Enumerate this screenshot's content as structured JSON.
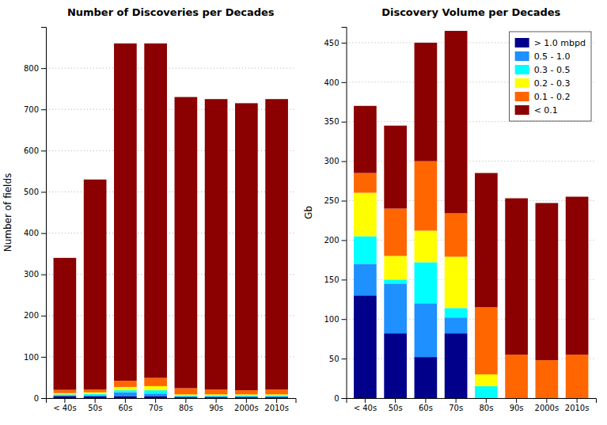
{
  "chart_data": [
    {
      "type": "bar",
      "stacked": true,
      "title": "Number of Discoveries per Decades",
      "y_label": "Number of fields",
      "categories": [
        "< 40s",
        "50s",
        "60s",
        "70s",
        "80s",
        "90s",
        "2000s",
        "2010s"
      ],
      "series": [
        {
          "color": "#00008B",
          "values": [
            5,
            4,
            5,
            5,
            2,
            2,
            2,
            2
          ]
        },
        {
          "color": "#1E90FF",
          "values": [
            2,
            3,
            9,
            6,
            2,
            2,
            2,
            2
          ]
        },
        {
          "color": "#00FFFF",
          "values": [
            2,
            3,
            5,
            8,
            2,
            2,
            2,
            2
          ]
        },
        {
          "color": "#FFFF00",
          "values": [
            3,
            4,
            8,
            10,
            3,
            3,
            3,
            3
          ]
        },
        {
          "color": "#FF6600",
          "values": [
            8,
            7,
            15,
            20,
            15,
            12,
            10,
            12
          ]
        },
        {
          "color": "#8B0000",
          "values": [
            320,
            509,
            818,
            811,
            706,
            704,
            696,
            704
          ]
        }
      ],
      "ylim": [
        0,
        900
      ],
      "yticks": [
        0,
        100,
        200,
        300,
        400,
        500,
        600,
        700,
        800
      ],
      "grid": true
    },
    {
      "type": "bar",
      "stacked": true,
      "title": "Discovery Volume per Decades",
      "y_label": "Gb",
      "categories": [
        "< 40s",
        "50s",
        "60s",
        "70s",
        "80s",
        "90s",
        "2000s",
        "2010s"
      ],
      "series": [
        {
          "name": "> 1.0 mbpd",
          "color": "#00008B",
          "values": [
            130,
            82,
            52,
            82,
            0,
            0,
            0,
            0
          ]
        },
        {
          "name": "0.5 - 1.0",
          "color": "#1E90FF",
          "values": [
            40,
            63,
            68,
            20,
            0,
            0,
            0,
            0
          ]
        },
        {
          "name": "0.3 - 0.5",
          "color": "#00FFFF",
          "values": [
            35,
            5,
            52,
            12,
            15,
            0,
            0,
            0
          ]
        },
        {
          "name": "0.2 - 0.3",
          "color": "#FFFF00",
          "values": [
            55,
            30,
            40,
            65,
            15,
            0,
            0,
            0
          ]
        },
        {
          "name": "0.1 - 0.2",
          "color": "#FF6600",
          "values": [
            25,
            60,
            88,
            55,
            85,
            55,
            48,
            55
          ]
        },
        {
          "name": "< 0.1",
          "color": "#8B0000",
          "values": [
            85,
            105,
            150,
            231,
            170,
            198,
            199,
            200
          ]
        }
      ],
      "ylim": [
        0,
        470
      ],
      "yticks": [
        0,
        50,
        100,
        150,
        200,
        250,
        300,
        350,
        400,
        450
      ],
      "grid": true,
      "legend": "upper right"
    }
  ]
}
